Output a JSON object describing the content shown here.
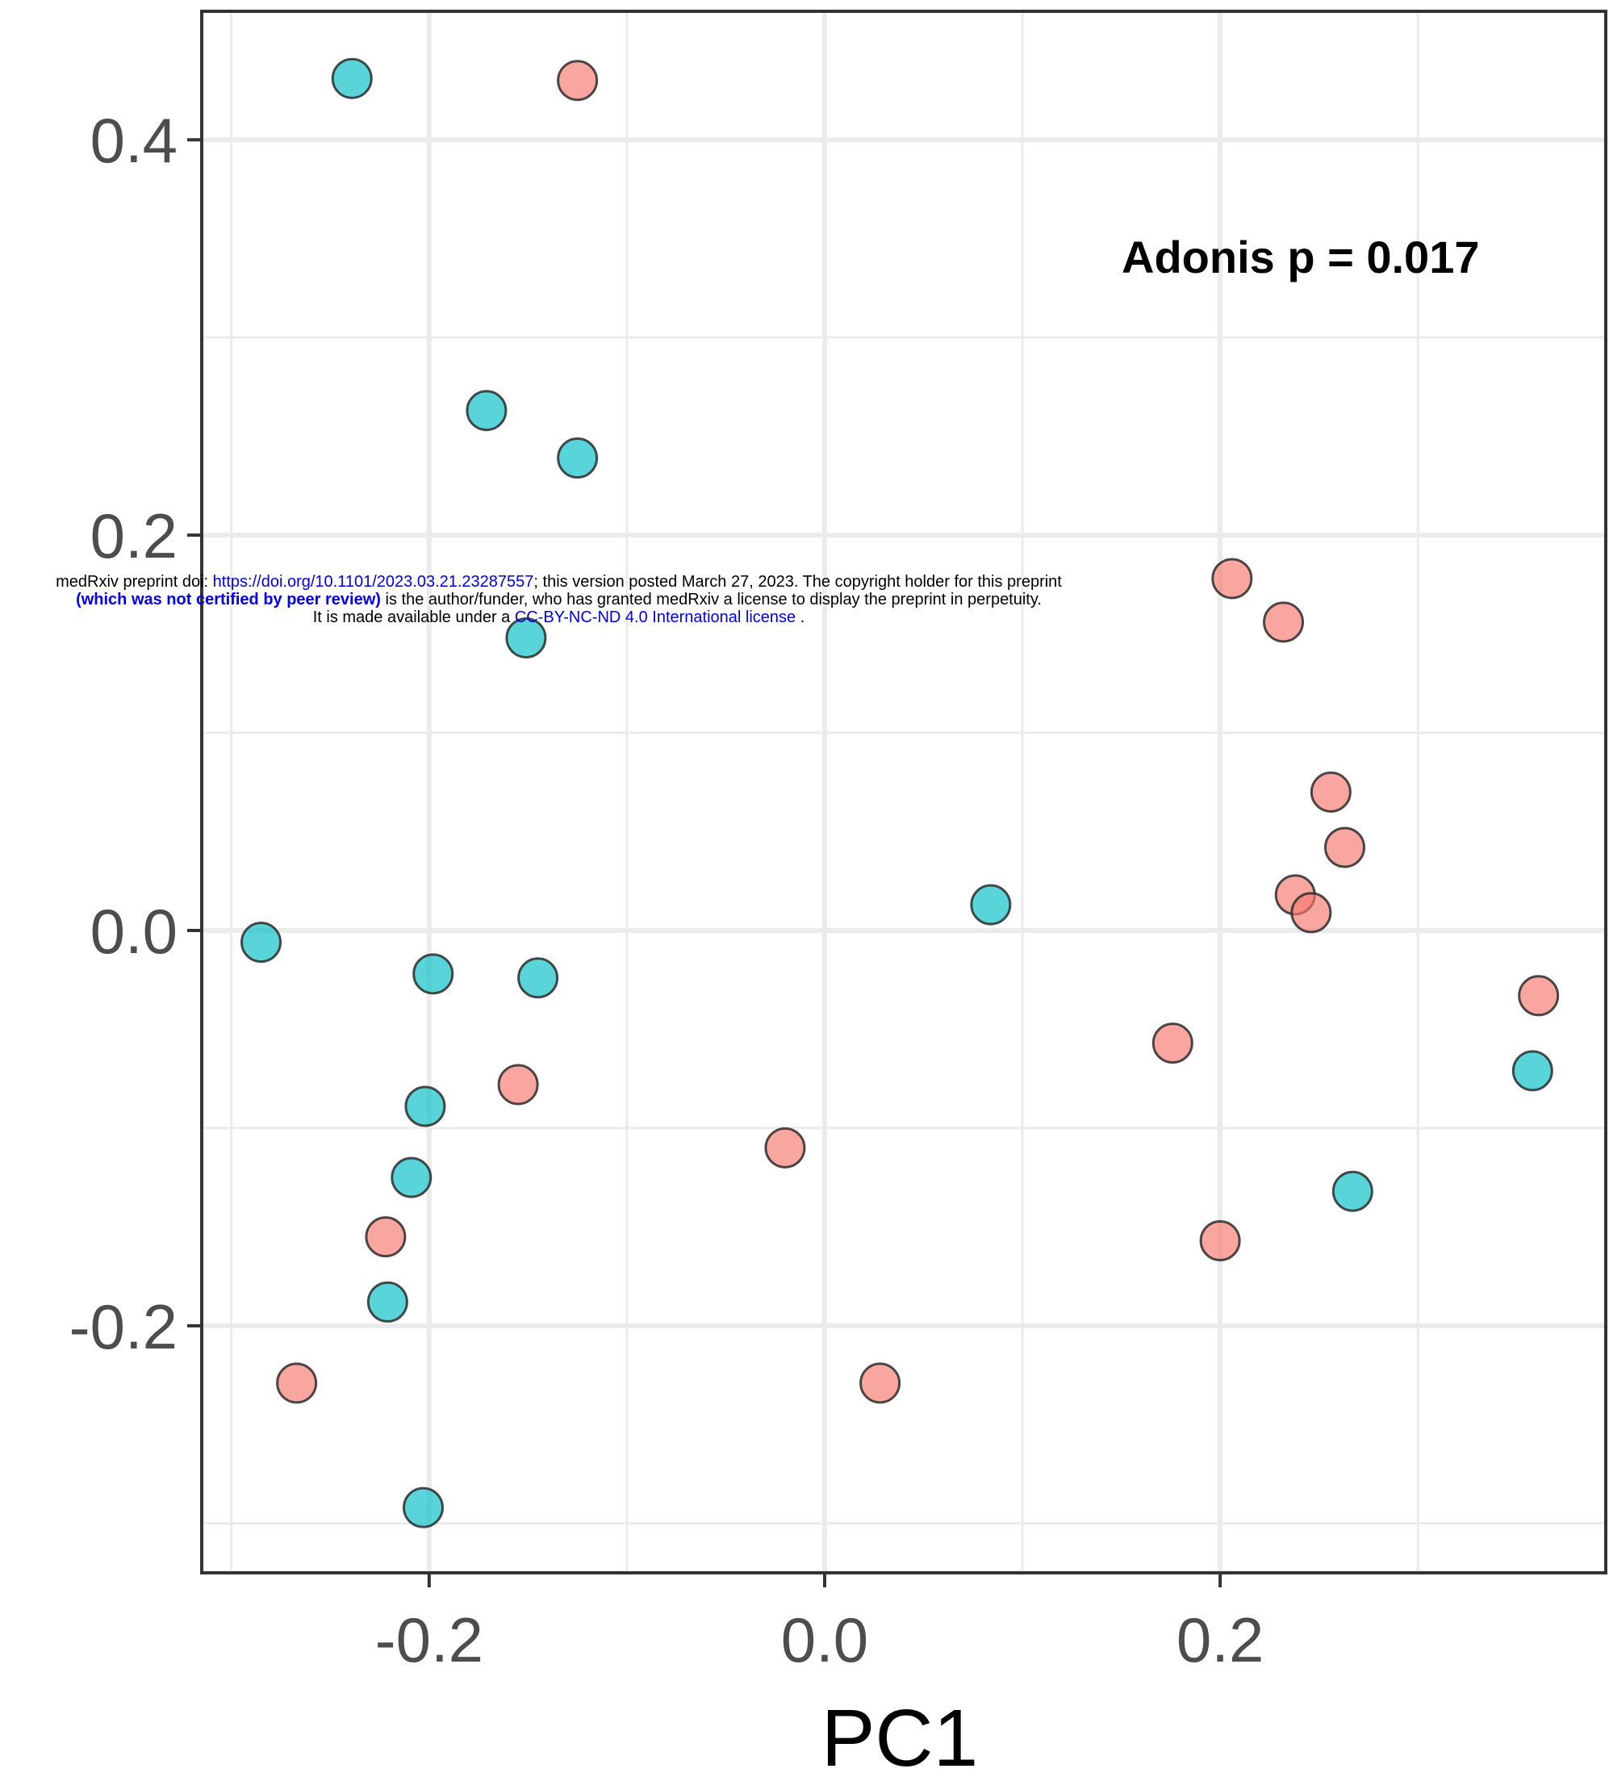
{
  "chart_data": {
    "type": "scatter",
    "xlabel": "PC1",
    "ylabel": "",
    "xlim": [
      -0.315,
      0.395
    ],
    "ylim": [
      -0.325,
      0.465
    ],
    "x_ticks": [
      -0.2,
      0.0,
      0.2
    ],
    "x_tick_labels": [
      "-0.2",
      "0.0",
      "0.2"
    ],
    "y_ticks": [
      -0.2,
      0.0,
      0.2,
      0.4
    ],
    "y_tick_labels": [
      "-0.2",
      "0.0",
      "0.2",
      "0.4"
    ],
    "grid": true,
    "annotation": "Adonis p = 0.017",
    "series": [
      {
        "color": "#F8766D",
        "points": [
          [
            -0.125,
            0.43
          ],
          [
            0.206,
            0.178
          ],
          [
            0.232,
            0.156
          ],
          [
            0.256,
            0.07
          ],
          [
            0.263,
            0.042
          ],
          [
            0.238,
            0.018
          ],
          [
            0.246,
            0.009
          ],
          [
            0.361,
            -0.033
          ],
          [
            0.176,
            -0.057
          ],
          [
            -0.155,
            -0.078
          ],
          [
            -0.02,
            -0.11
          ],
          [
            -0.222,
            -0.155
          ],
          [
            0.2,
            -0.157
          ],
          [
            -0.267,
            -0.229
          ],
          [
            0.028,
            -0.229
          ]
        ]
      },
      {
        "color": "#00BFC4",
        "points": [
          [
            -0.239,
            0.431
          ],
          [
            -0.171,
            0.263
          ],
          [
            -0.125,
            0.239
          ],
          [
            -0.151,
            0.148
          ],
          [
            0.084,
            0.013
          ],
          [
            -0.285,
            -0.006
          ],
          [
            -0.198,
            -0.022
          ],
          [
            -0.145,
            -0.024
          ],
          [
            -0.202,
            -0.089
          ],
          [
            -0.209,
            -0.125
          ],
          [
            -0.221,
            -0.188
          ],
          [
            -0.203,
            -0.292
          ],
          [
            0.358,
            -0.071
          ],
          [
            0.267,
            -0.132
          ]
        ]
      }
    ]
  },
  "watermark": {
    "line1_prefix": "medRxiv preprint doi: ",
    "line1_link": "https://doi.org/10.1101/2023.03.21.23287557",
    "line1_suffix": "; this version posted March 27, 2023. The copyright holder for this preprint",
    "line2_bold": "(which was not certified by peer review)",
    "line2_suffix": " is the author/funder, who has granted medRxiv a license to display the preprint in perpetuity.",
    "line3_prefix": "It is made available under a ",
    "line3_link": "CC-BY-NC-ND 4.0 International license",
    "line3_suffix": " ."
  }
}
